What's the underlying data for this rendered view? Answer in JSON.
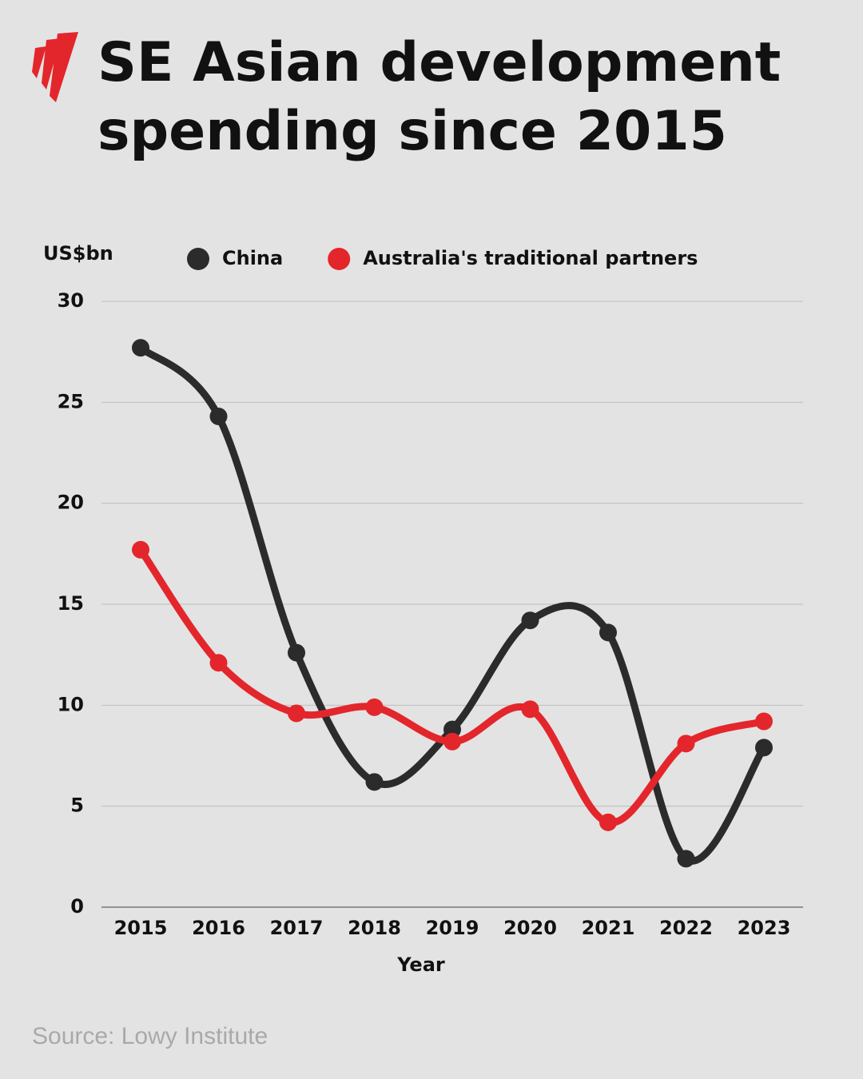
{
  "chart_data": {
    "type": "line",
    "title": "SE Asian development spending since 2015",
    "y_label": "US$bn",
    "x_label": "Year",
    "source": "Source: Lowy Institute",
    "categories": [
      "2015",
      "2016",
      "2017",
      "2018",
      "2019",
      "2020",
      "2021",
      "2022",
      "2023"
    ],
    "series": [
      {
        "name": "China",
        "color": "#2b2b2b",
        "values": [
          27.7,
          24.3,
          12.6,
          6.2,
          8.8,
          14.2,
          13.6,
          2.4,
          7.9
        ]
      },
      {
        "name": "Australia's traditional partners",
        "color": "#e3262b",
        "values": [
          17.7,
          12.1,
          9.6,
          9.9,
          8.2,
          9.8,
          4.2,
          8.1,
          9.2
        ]
      }
    ],
    "ylim": [
      0,
      30
    ],
    "yticks": [
      0,
      5,
      10,
      15,
      20,
      25,
      30
    ],
    "grid": true,
    "legend": "top"
  }
}
